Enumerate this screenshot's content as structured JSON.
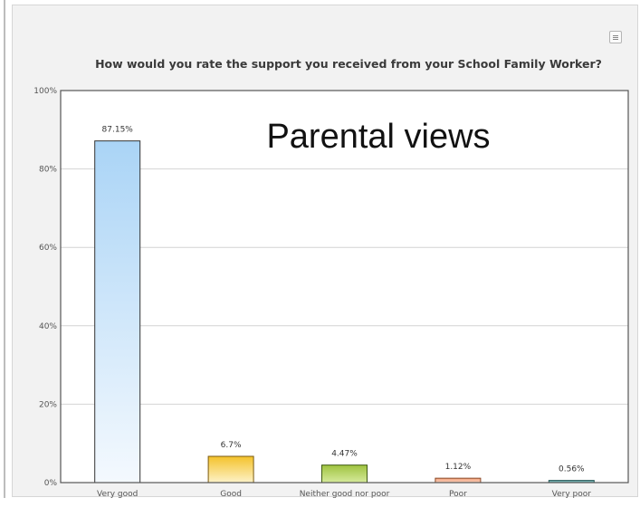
{
  "chart_data": {
    "type": "bar",
    "title": "How would you rate the support you received from your School Family Worker?",
    "annotation": "Parental views",
    "categories": [
      "Very good",
      "Good",
      "Neither good nor poor",
      "Poor",
      "Very poor"
    ],
    "values": [
      87.15,
      6.7,
      4.47,
      1.12,
      0.56
    ],
    "data_labels": [
      "87.15%",
      "6.7%",
      "4.47%",
      "1.12%",
      "0.56%"
    ],
    "y_ticks": [
      "0%",
      "20%",
      "40%",
      "60%",
      "80%",
      "100%"
    ],
    "ylim": [
      0,
      100
    ],
    "xlabel": "",
    "ylabel": "",
    "grid": true,
    "bar_colors": [
      {
        "top": "#aad4f6",
        "bottom": "#f4f9fe",
        "stroke": "#333333"
      },
      {
        "top": "#f4c22a",
        "bottom": "#fdf2c8",
        "stroke": "#7a5a10"
      },
      {
        "top": "#9fc33f",
        "bottom": "#d6ea9c",
        "stroke": "#3e5a12"
      },
      {
        "top": "#f2a07a",
        "bottom": "#fad2bc",
        "stroke": "#8a4a2a"
      },
      {
        "top": "#5fa3a3",
        "bottom": "#8fc4c4",
        "stroke": "#2a5a5a"
      }
    ]
  }
}
